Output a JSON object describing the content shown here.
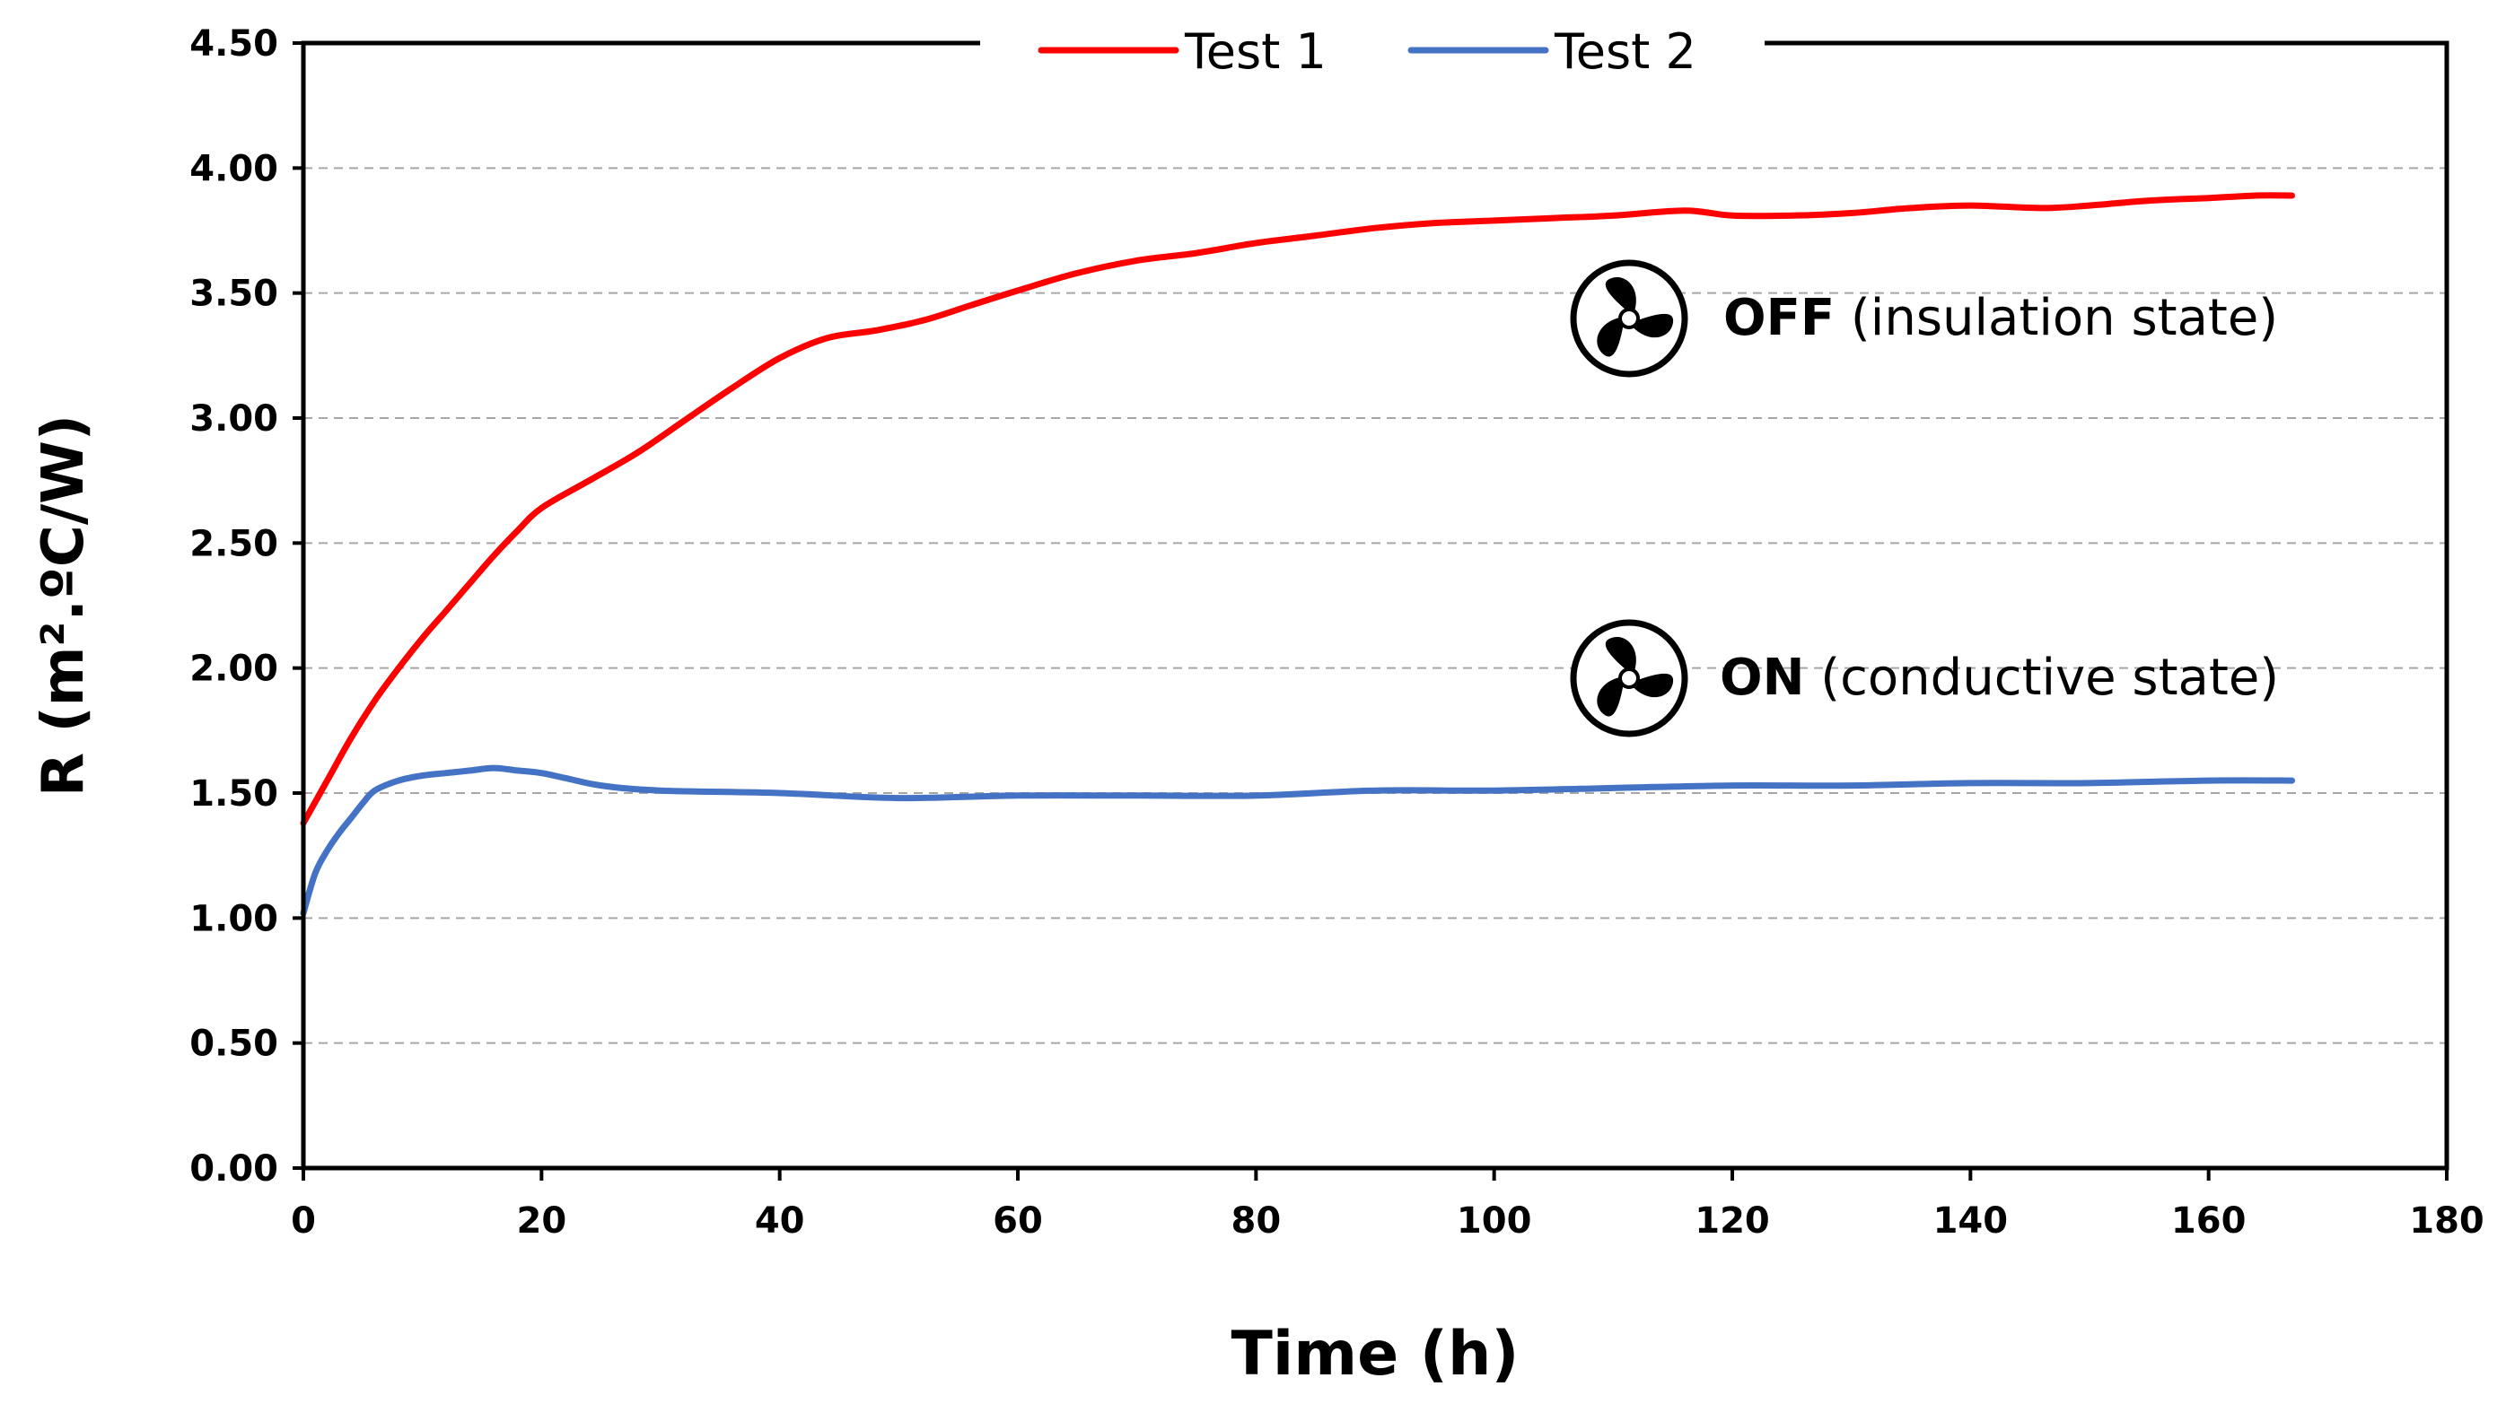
{
  "chart_data": {
    "type": "line",
    "title": "",
    "xlabel": "Time (h)",
    "ylabel": "R (m².ºC/W)",
    "xlim": [
      0,
      180
    ],
    "ylim": [
      0,
      4.5
    ],
    "x_ticks": [
      "0",
      "20",
      "40",
      "60",
      "80",
      "100",
      "120",
      "140",
      "160",
      "180"
    ],
    "y_ticks": [
      "0.00",
      "0.50",
      "1.00",
      "1.50",
      "2.00",
      "2.50",
      "3.00",
      "3.50",
      "4.00",
      "4.50"
    ],
    "grid": "horizontal dashed",
    "legend_position": "top",
    "series": [
      {
        "name": "Test 1",
        "color": "#ff0000",
        "x": [
          0,
          2,
          4,
          6,
          8,
          10,
          12,
          14,
          16,
          18,
          20,
          24,
          28,
          32,
          36,
          40,
          44,
          48,
          52,
          56,
          60,
          65,
          70,
          75,
          80,
          85,
          90,
          95,
          100,
          105,
          110,
          116,
          120,
          125,
          130,
          135,
          140,
          146,
          150,
          155,
          160,
          164,
          167
        ],
        "y": [
          1.38,
          1.55,
          1.72,
          1.87,
          2.0,
          2.12,
          2.23,
          2.34,
          2.45,
          2.55,
          2.64,
          2.75,
          2.86,
          2.99,
          3.12,
          3.24,
          3.32,
          3.35,
          3.39,
          3.45,
          3.51,
          3.58,
          3.63,
          3.66,
          3.7,
          3.73,
          3.76,
          3.78,
          3.79,
          3.8,
          3.81,
          3.83,
          3.81,
          3.81,
          3.82,
          3.84,
          3.85,
          3.84,
          3.85,
          3.87,
          3.88,
          3.89,
          3.89
        ]
      },
      {
        "name": "Test 2",
        "color": "#4472c4",
        "x": [
          0,
          1,
          2,
          3,
          4,
          5,
          6,
          8,
          10,
          12,
          14,
          16,
          18,
          20,
          22,
          25,
          30,
          40,
          50,
          60,
          70,
          80,
          90,
          100,
          110,
          120,
          130,
          140,
          150,
          160,
          167
        ],
        "y": [
          1.02,
          1.18,
          1.27,
          1.34,
          1.4,
          1.46,
          1.51,
          1.55,
          1.57,
          1.58,
          1.59,
          1.6,
          1.59,
          1.58,
          1.56,
          1.53,
          1.51,
          1.5,
          1.48,
          1.49,
          1.49,
          1.49,
          1.51,
          1.51,
          1.52,
          1.53,
          1.53,
          1.54,
          1.54,
          1.55,
          1.55
        ]
      }
    ],
    "annotations": [
      {
        "icon": "fan-icon",
        "bold": "OFF",
        "text": " (insulation state)"
      },
      {
        "icon": "fan-icon",
        "bold": "ON",
        "text": " (conductive state)"
      }
    ]
  }
}
